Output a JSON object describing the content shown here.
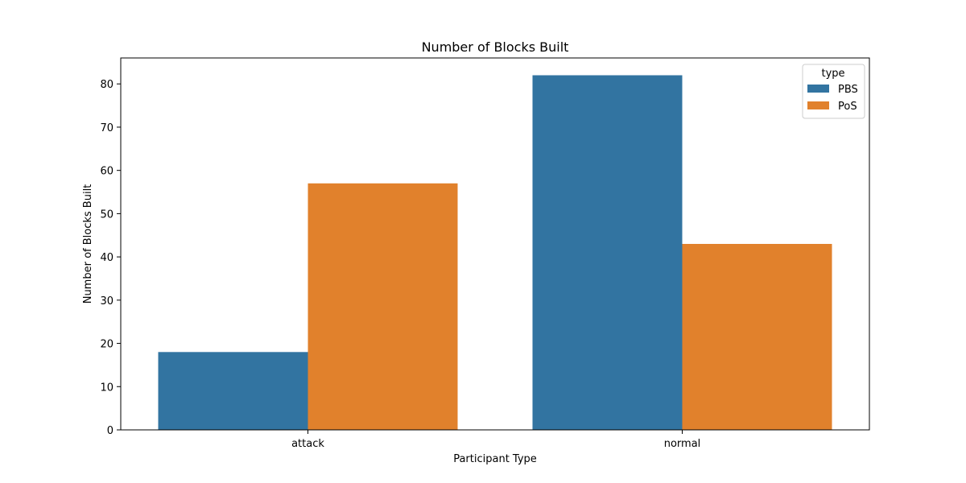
{
  "chart_data": {
    "type": "bar",
    "title": "Number of Blocks Built",
    "xlabel": "Participant Type",
    "ylabel": "Number of Blocks Built",
    "categories": [
      "attack",
      "normal"
    ],
    "series": [
      {
        "name": "PBS",
        "values": [
          18,
          82
        ],
        "color": "#3274a1"
      },
      {
        "name": "PoS",
        "values": [
          57,
          43
        ],
        "color": "#e1812c"
      }
    ],
    "ylim": [
      0,
      86
    ],
    "yticks": [
      0,
      10,
      20,
      30,
      40,
      50,
      60,
      70,
      80
    ],
    "legend": {
      "title": "type",
      "position": "top-right"
    },
    "grid": false
  }
}
